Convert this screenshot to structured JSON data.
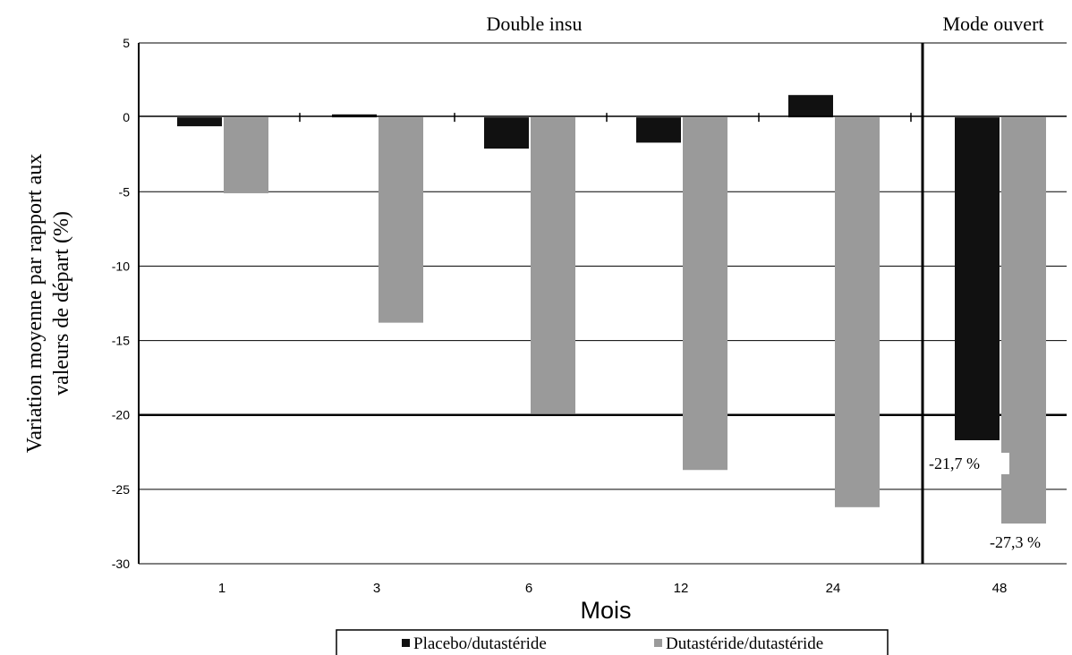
{
  "chart_data": {
    "type": "bar",
    "categories": [
      "1",
      "3",
      "6",
      "12",
      "24",
      "48"
    ],
    "series": [
      {
        "name": "Placebo/dutastéride",
        "values": [
          -0.6,
          0.2,
          -2.1,
          -1.7,
          1.5,
          -21.7
        ],
        "color": "#111111"
      },
      {
        "name": "Dutastéride/dutastéride",
        "values": [
          -5.1,
          -13.8,
          -19.9,
          -23.7,
          -26.2,
          -27.3
        ],
        "color": "#9a9a9a"
      }
    ],
    "xlabel": "Mois",
    "ylabel_line1": "Variation moyenne par rapport aux",
    "ylabel_line2": "valeurs de départ (%)",
    "ylim": [
      -30,
      5
    ],
    "yticks": [
      5,
      0,
      -5,
      -10,
      -15,
      -20,
      -25,
      -30
    ],
    "grid": true,
    "section_labels": [
      "Double insu",
      "Mode ouvert"
    ],
    "annotations": [
      "-21,7 %",
      "-27,3 %"
    ],
    "legend_position": "bottom"
  }
}
